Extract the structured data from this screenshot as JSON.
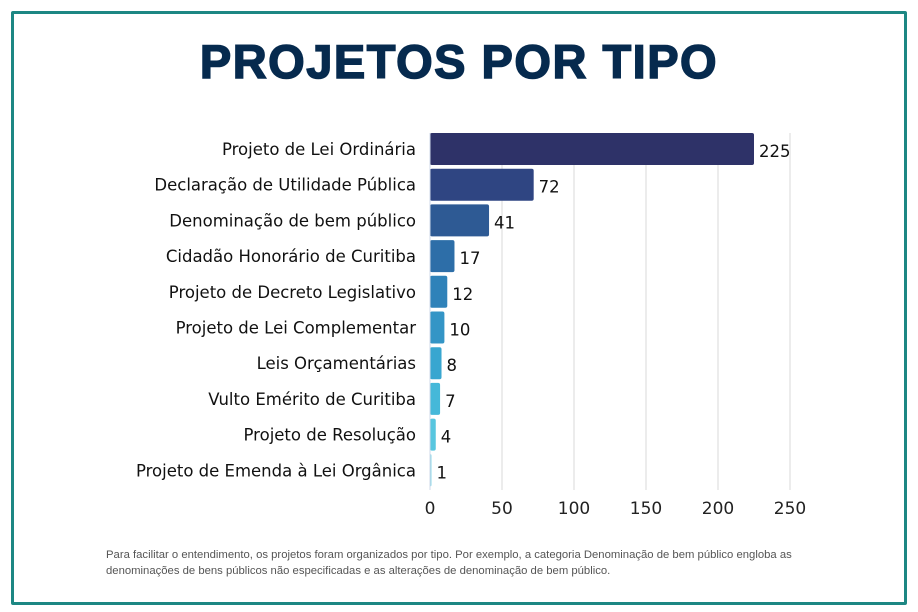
{
  "chart_data": {
    "type": "bar",
    "orientation": "horizontal",
    "title": "PROJETOS POR TIPO",
    "categories": [
      "Projeto de Lei Ordinária",
      "Declaração de Utilidade Pública",
      "Denominação de bem público",
      "Cidadão Honorário de Curitiba",
      "Projeto de Decreto Legislativo",
      "Projeto de Lei Complementar",
      "Leis Orçamentárias",
      "Vulto Emérito de Curitiba",
      "Projeto de Resolução",
      "Projeto de Emenda à Lei Orgânica"
    ],
    "values": [
      225,
      72,
      41,
      17,
      12,
      10,
      8,
      7,
      4,
      1
    ],
    "xlim": [
      0,
      250
    ],
    "xticks": [
      0,
      50,
      100,
      150,
      200,
      250
    ],
    "grid": true,
    "colors": [
      "#2e3268",
      "#2f4582",
      "#2e5a94",
      "#2d6ea8",
      "#2f82b9",
      "#3495c6",
      "#38a6d0",
      "#45b8d9",
      "#58c6df",
      "#8fd8e8"
    ]
  },
  "footnote": "Para facilitar o entendimento, os projetos foram organizados por tipo. Por exemplo, a categoria Denominação de bem público engloba as denominações de bens públicos não especificadas e as alterações de denominação de bem público.",
  "border_color": "#1d8783",
  "title_color": "#062a4e"
}
